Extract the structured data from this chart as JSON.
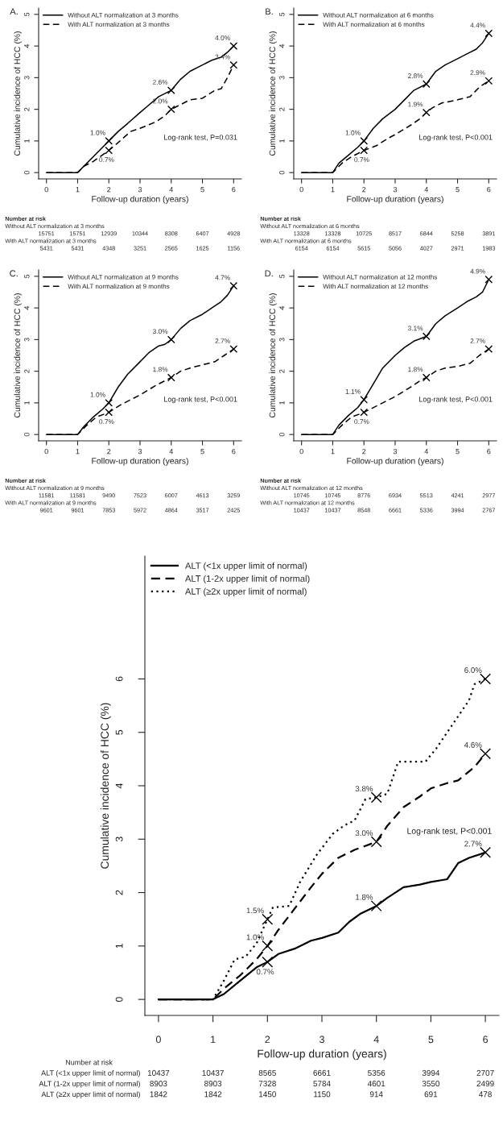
{
  "chart_data": [
    {
      "type": "line",
      "title": "A.",
      "xlabel": "Follow-up duration (years)",
      "ylabel": "Cumulative incidence of HCC (%)",
      "xlim": [
        -0.25,
        6.25
      ],
      "ylim": [
        -0.2,
        5.2
      ],
      "xticks": [
        0,
        1,
        2,
        3,
        4,
        5,
        6
      ],
      "yticks": [
        0,
        1,
        2,
        3,
        4,
        5
      ],
      "legend": "top left",
      "grid": false,
      "series": [
        {
          "name": "Without ALT normalization at 3 months",
          "color": "#000000",
          "line_style": "solid",
          "x": [
            0,
            1,
            1.2,
            1.5,
            1.8,
            2,
            2.3,
            2.6,
            3,
            3.3,
            3.6,
            4,
            4.3,
            4.6,
            5,
            5.3,
            5.6,
            5.8,
            6
          ],
          "values": [
            0,
            0,
            0.2,
            0.5,
            0.8,
            1.0,
            1.3,
            1.55,
            1.9,
            2.15,
            2.4,
            2.6,
            2.95,
            3.2,
            3.4,
            3.55,
            3.65,
            3.8,
            4.0
          ],
          "value_labels": [
            null,
            null,
            null,
            null,
            null,
            "1.0%",
            null,
            null,
            null,
            null,
            null,
            "2.6%",
            null,
            null,
            null,
            null,
            null,
            null,
            "4.0%"
          ]
        },
        {
          "name": "With ALT normalization at 3 months",
          "color": "#000000",
          "line_style": "dashed",
          "x": [
            0,
            1,
            1.2,
            1.5,
            2,
            2.3,
            2.7,
            3,
            3.5,
            3.8,
            4,
            4.3,
            4.6,
            5,
            5.4,
            5.6,
            5.8,
            6
          ],
          "values": [
            0,
            0,
            0.2,
            0.35,
            0.7,
            0.95,
            1.3,
            1.4,
            1.6,
            1.8,
            2.0,
            2.15,
            2.3,
            2.35,
            2.6,
            2.65,
            3.0,
            3.4
          ],
          "value_labels": [
            null,
            null,
            null,
            null,
            "0.7%",
            null,
            null,
            null,
            null,
            null,
            "2.0%",
            null,
            null,
            null,
            null,
            null,
            null,
            "3.4%"
          ]
        }
      ],
      "annotations": [
        "Log-rank test, P=0.031",
        "Number at risk",
        "Without ALT normalization at 3 months",
        "With ALT normalization at 3 months",
        "15751",
        "15751",
        "12939",
        "10344",
        "8308",
        "6407",
        "4928",
        "5431",
        "5431",
        "4348",
        "3251",
        "2565",
        "1625",
        "1156"
      ]
    },
    {
      "type": "line",
      "title": "B.",
      "xlabel": "Follow-up duration (years)",
      "ylabel": "Cumulative incidence of HCC (%)",
      "xlim": [
        -0.25,
        6.25
      ],
      "ylim": [
        -0.2,
        5.2
      ],
      "xticks": [
        0,
        1,
        2,
        3,
        4,
        5,
        6
      ],
      "yticks": [
        0,
        1,
        2,
        3,
        4,
        5
      ],
      "legend": "top left",
      "grid": false,
      "series": [
        {
          "name": "Without ALT normalization at 6 months",
          "color": "#000000",
          "line_style": "solid",
          "x": [
            0,
            1,
            1.2,
            1.5,
            1.8,
            2,
            2.3,
            2.6,
            3,
            3.3,
            3.6,
            4,
            4.3,
            4.6,
            5,
            5.3,
            5.6,
            5.8,
            6
          ],
          "values": [
            0,
            0,
            0.3,
            0.55,
            0.8,
            1.0,
            1.4,
            1.7,
            2.0,
            2.3,
            2.6,
            2.8,
            3.2,
            3.4,
            3.6,
            3.75,
            3.9,
            4.1,
            4.4
          ],
          "value_labels": [
            null,
            null,
            null,
            null,
            null,
            "1.0%",
            null,
            null,
            null,
            null,
            null,
            "2.8%",
            null,
            null,
            null,
            null,
            null,
            null,
            "4.4%"
          ]
        },
        {
          "name": "With ALT normalization at 6 months",
          "color": "#000000",
          "line_style": "dashed",
          "x": [
            0,
            1,
            1.3,
            1.6,
            2,
            2.4,
            2.8,
            3,
            3.5,
            3.8,
            4,
            4.2,
            4.5,
            5,
            5.4,
            5.7,
            6
          ],
          "values": [
            0,
            0,
            0.3,
            0.5,
            0.7,
            0.85,
            1.1,
            1.2,
            1.5,
            1.7,
            1.9,
            2.05,
            2.2,
            2.3,
            2.4,
            2.7,
            2.9
          ],
          "value_labels": [
            null,
            null,
            null,
            null,
            "0.7%",
            null,
            null,
            null,
            null,
            null,
            "1.9%",
            null,
            null,
            null,
            null,
            null,
            "2.9%"
          ]
        }
      ],
      "annotations": [
        "Log-rank test, P<0.001",
        "Number at risk",
        "Without ALT normalization at 6 months",
        "With ALT normalization at 6 months",
        "13328",
        "13328",
        "10725",
        "8517",
        "6844",
        "5258",
        "3891",
        "6154",
        "6154",
        "5615",
        "5056",
        "4027",
        "2971",
        "1983"
      ]
    },
    {
      "type": "line",
      "title": "C.",
      "xlabel": "Follow-up duration (years)",
      "ylabel": "Cumulative incidence of HCC (%)",
      "xlim": [
        -0.25,
        6.25
      ],
      "ylim": [
        -0.2,
        5.2
      ],
      "xticks": [
        0,
        1,
        2,
        3,
        4,
        5,
        6
      ],
      "yticks": [
        0,
        1,
        2,
        3,
        4,
        5
      ],
      "legend": "top left",
      "grid": false,
      "series": [
        {
          "name": "Without ALT normalization at 9 months",
          "color": "#000000",
          "line_style": "solid",
          "x": [
            0,
            1,
            1.2,
            1.5,
            1.8,
            2,
            2.3,
            2.6,
            3,
            3.3,
            3.6,
            3.8,
            4,
            4.3,
            4.6,
            5,
            5.3,
            5.6,
            5.8,
            6
          ],
          "values": [
            0,
            0,
            0.25,
            0.55,
            0.8,
            1.0,
            1.5,
            1.9,
            2.3,
            2.6,
            2.8,
            2.85,
            3.0,
            3.35,
            3.6,
            3.8,
            4.0,
            4.2,
            4.4,
            4.7
          ],
          "value_labels": [
            null,
            null,
            null,
            null,
            null,
            "1.0%",
            null,
            null,
            null,
            null,
            null,
            null,
            "3.0%",
            null,
            null,
            null,
            null,
            null,
            null,
            "4.7%"
          ]
        },
        {
          "name": "With ALT normalization at 9 months",
          "color": "#000000",
          "line_style": "dashed",
          "x": [
            0,
            1,
            1.3,
            1.6,
            2,
            2.4,
            2.8,
            3,
            3.5,
            3.8,
            4,
            4.3,
            4.6,
            5,
            5.4,
            5.7,
            6
          ],
          "values": [
            0,
            0,
            0.3,
            0.55,
            0.7,
            0.95,
            1.15,
            1.25,
            1.55,
            1.7,
            1.8,
            2.0,
            2.1,
            2.2,
            2.3,
            2.5,
            2.7
          ],
          "value_labels": [
            null,
            null,
            null,
            null,
            "0.7%",
            null,
            null,
            null,
            null,
            null,
            "1.8%",
            null,
            null,
            null,
            null,
            null,
            "2.7%"
          ]
        }
      ],
      "annotations": [
        "Log-rank test, P<0.001",
        "Number at risk",
        "Without ALT normalization at 9 months",
        "With ALT normalization at 9 months",
        "11581",
        "11581",
        "9490",
        "7523",
        "6007",
        "4613",
        "3259",
        "9601",
        "9601",
        "7853",
        "5972",
        "4864",
        "3517",
        "2425"
      ]
    },
    {
      "type": "line",
      "title": "D.",
      "xlabel": "Follow-up duration (years)",
      "ylabel": "Cumulative incidence of HCC (%)",
      "xlim": [
        -0.25,
        6.25
      ],
      "ylim": [
        -0.2,
        5.2
      ],
      "xticks": [
        0,
        1,
        2,
        3,
        4,
        5,
        6
      ],
      "yticks": [
        0,
        1,
        2,
        3,
        4,
        5
      ],
      "legend": "top left",
      "grid": false,
      "series": [
        {
          "name": "Without ALT normalization at 12 months",
          "color": "#000000",
          "line_style": "solid",
          "x": [
            0,
            1,
            1.2,
            1.5,
            1.8,
            2,
            2.3,
            2.6,
            3,
            3.3,
            3.6,
            4,
            4.3,
            4.6,
            5,
            5.3,
            5.6,
            5.8,
            6
          ],
          "values": [
            0,
            0,
            0.3,
            0.6,
            0.85,
            1.1,
            1.6,
            2.1,
            2.5,
            2.75,
            2.95,
            3.1,
            3.5,
            3.75,
            4.0,
            4.2,
            4.35,
            4.5,
            4.9
          ],
          "value_labels": [
            null,
            null,
            null,
            null,
            null,
            "1.1%",
            null,
            null,
            null,
            null,
            null,
            "3.1%",
            null,
            null,
            null,
            null,
            null,
            null,
            "4.9%"
          ]
        },
        {
          "name": "With ALT normalization at 12 months",
          "color": "#000000",
          "line_style": "dashed",
          "x": [
            0,
            1,
            1.3,
            1.6,
            2,
            2.4,
            2.8,
            3,
            3.5,
            3.8,
            4,
            4.3,
            4.6,
            5,
            5.4,
            5.7,
            6
          ],
          "values": [
            0,
            0,
            0.3,
            0.55,
            0.7,
            0.9,
            1.1,
            1.2,
            1.5,
            1.7,
            1.8,
            2.0,
            2.1,
            2.15,
            2.25,
            2.5,
            2.7
          ],
          "value_labels": [
            null,
            null,
            null,
            null,
            "0.7%",
            null,
            null,
            null,
            null,
            null,
            "1.8%",
            null,
            null,
            null,
            null,
            null,
            "2.7%"
          ]
        }
      ],
      "annotations": [
        "Log-rank test, P<0.001",
        "Number at risk",
        "Without ALT normalization at 12 months",
        "With ALT normalization at 12 months",
        "10745",
        "10745",
        "8776",
        "6934",
        "5513",
        "4241",
        "2977",
        "10437",
        "10437",
        "8548",
        "6661",
        "5336",
        "3994",
        "2767"
      ]
    },
    {
      "type": "line",
      "xlabel": "Follow-up duration (years)",
      "ylabel": "Cumulative incidence of HCC (%)",
      "xlim": [
        -0.25,
        6.25
      ],
      "ylim": [
        -0.3,
        8.3
      ],
      "xticks": [
        0,
        1,
        2,
        3,
        4,
        5,
        6
      ],
      "yticks": [
        0,
        1,
        2,
        3,
        4,
        5,
        6
      ],
      "legend": "top left",
      "grid": false,
      "series": [
        {
          "name": "ALT (<1x upper limit of normal)",
          "color": "#000000",
          "line_style": "solid",
          "x": [
            0,
            1,
            1.2,
            1.5,
            1.8,
            2,
            2.2,
            2.5,
            2.8,
            3,
            3.3,
            3.5,
            3.7,
            4,
            4.2,
            4.5,
            4.8,
            5,
            5.3,
            5.5,
            5.7,
            6
          ],
          "values": [
            0,
            0,
            0.1,
            0.35,
            0.6,
            0.7,
            0.85,
            0.95,
            1.1,
            1.15,
            1.25,
            1.45,
            1.6,
            1.75,
            1.9,
            2.1,
            2.15,
            2.2,
            2.25,
            2.55,
            2.65,
            2.75
          ],
          "value_labels": [
            null,
            null,
            null,
            null,
            null,
            "0.7%",
            null,
            null,
            null,
            null,
            null,
            null,
            null,
            "1.8%",
            null,
            null,
            null,
            null,
            null,
            null,
            null,
            "2.7%"
          ]
        },
        {
          "name": "ALT (1-2x upper limit of normal)",
          "color": "#000000",
          "line_style": "dashed",
          "x": [
            0,
            1,
            1.2,
            1.5,
            1.8,
            2,
            2.2,
            2.5,
            2.8,
            3,
            3.3,
            3.6,
            4,
            4.2,
            4.5,
            4.8,
            5,
            5.3,
            5.5,
            5.8,
            6
          ],
          "values": [
            0,
            0,
            0.2,
            0.45,
            0.75,
            1.0,
            1.3,
            1.7,
            2.1,
            2.35,
            2.65,
            2.8,
            2.95,
            3.25,
            3.6,
            3.8,
            3.95,
            4.05,
            4.1,
            4.35,
            4.6
          ],
          "value_labels": [
            null,
            null,
            null,
            null,
            null,
            "1.0%",
            null,
            null,
            null,
            null,
            null,
            null,
            "3.0%",
            null,
            null,
            null,
            null,
            null,
            null,
            null,
            "4.6%"
          ]
        },
        {
          "name": "ALT (≥2x upper limit of normal)",
          "color": "#000000",
          "line_style": "dotted",
          "x": [
            0,
            1,
            1.2,
            1.4,
            1.6,
            1.8,
            2,
            2.1,
            2.4,
            2.6,
            2.9,
            3.2,
            3.4,
            3.6,
            3.8,
            4,
            4.2,
            4.4,
            4.9,
            5.1,
            5.3,
            5.5,
            5.7,
            5.8,
            6
          ],
          "values": [
            0,
            0,
            0.35,
            0.75,
            0.8,
            1.05,
            1.5,
            1.72,
            1.75,
            2.2,
            2.7,
            3.1,
            3.25,
            3.35,
            3.75,
            3.78,
            3.85,
            4.45,
            4.45,
            4.7,
            5.0,
            5.3,
            5.6,
            5.9,
            6.0
          ],
          "value_labels": [
            null,
            null,
            null,
            null,
            null,
            null,
            "1.5%",
            null,
            null,
            null,
            null,
            null,
            null,
            null,
            null,
            "3.8%",
            null,
            null,
            null,
            null,
            null,
            null,
            null,
            null,
            "6.0%"
          ]
        }
      ],
      "annotations": [
        "Log-rank test, P<0.001",
        "Number at risk",
        "ALT (<1x upper limit of normal)",
        "ALT (1-2x upper limit of normal)",
        "ALT (≥2x upper limit of normal)",
        "10437",
        "10437",
        "8565",
        "6661",
        "5356",
        "3994",
        "2707",
        "8903",
        "8903",
        "7328",
        "5784",
        "4601",
        "3550",
        "2499",
        "1842",
        "1842",
        "1450",
        "1150",
        "914",
        "691",
        "478"
      ]
    }
  ]
}
